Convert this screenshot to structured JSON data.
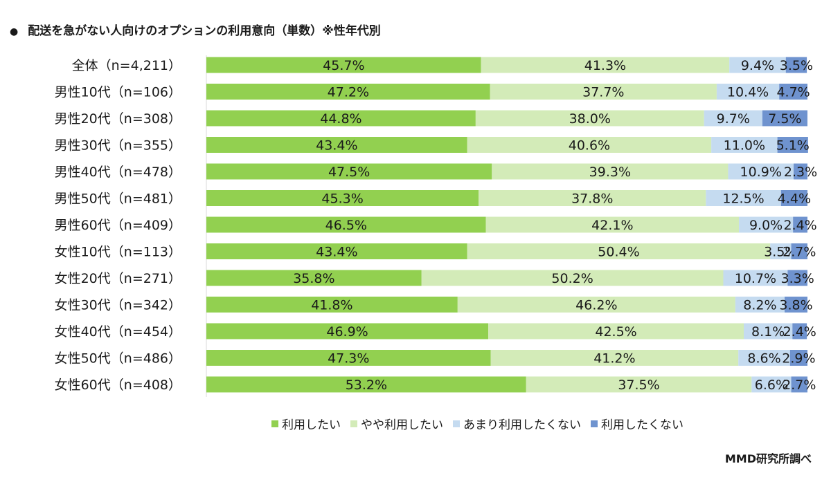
{
  "title": "配送を急がない人向けのオプションの利用意向（単数）※性年代別",
  "title_bullet": "●",
  "source": "MMD研究所調べ",
  "colors": {
    "series1": "#92d050",
    "series2": "#d3ebb8",
    "series3": "#c5dbf0",
    "series4": "#6f93cf"
  },
  "chart_data": {
    "type": "bar",
    "orientation": "horizontal",
    "stacked": true,
    "xlim": [
      0,
      100
    ],
    "grid": false,
    "legend_position": "bottom",
    "categories": [
      "全体（n=4,211）",
      "男性10代（n=106）",
      "男性20代（n=308）",
      "男性30代（n=355）",
      "男性40代（n=478）",
      "男性50代（n=481）",
      "男性60代（n=409）",
      "女性10代（n=113）",
      "女性20代（n=271）",
      "女性30代（n=342）",
      "女性40代（n=454）",
      "女性50代（n=486）",
      "女性60代（n=408）"
    ],
    "series": [
      {
        "name": "利用したい",
        "values": [
          45.7,
          47.2,
          44.8,
          43.4,
          47.5,
          45.3,
          46.5,
          43.4,
          35.8,
          41.8,
          46.9,
          47.3,
          53.2
        ]
      },
      {
        "name": "やや利用したい",
        "values": [
          41.3,
          37.7,
          38.0,
          40.6,
          39.3,
          37.8,
          42.1,
          50.4,
          50.2,
          46.2,
          42.5,
          41.2,
          37.5
        ]
      },
      {
        "name": "あまり利用したくない",
        "values": [
          9.4,
          10.4,
          9.7,
          11.0,
          10.9,
          12.5,
          9.0,
          3.5,
          10.7,
          8.2,
          8.1,
          8.6,
          6.6
        ]
      },
      {
        "name": "利用したくない",
        "values": [
          3.5,
          4.7,
          7.5,
          5.1,
          2.3,
          4.4,
          2.4,
          2.7,
          3.3,
          3.8,
          2.4,
          2.9,
          2.7
        ]
      }
    ]
  }
}
